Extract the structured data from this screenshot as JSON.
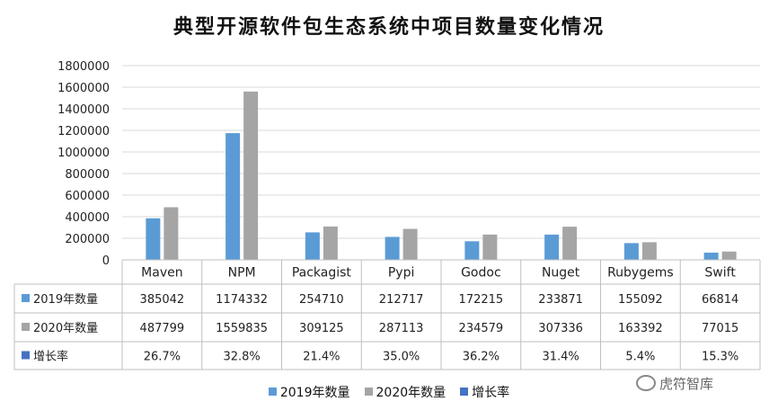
{
  "chart_data": {
    "type": "bar",
    "title": "典型开源软件包生态系统中项目数量变化情况",
    "categories": [
      "Maven",
      "NPM",
      "Packagist",
      "Pypi",
      "Godoc",
      "Nuget",
      "Rubygems",
      "Swift"
    ],
    "series": [
      {
        "name": "2019年数量",
        "color": "#5b9bd5",
        "values": [
          385042,
          1174332,
          254710,
          212717,
          172215,
          233871,
          155092,
          66814
        ]
      },
      {
        "name": "2020年数量",
        "color": "#a5a5a5",
        "values": [
          487799,
          1559835,
          309125,
          287113,
          234579,
          307336,
          163392,
          77015
        ]
      },
      {
        "name": "增长率",
        "color": "#4472c4",
        "labels": [
          "26.7%",
          "32.8%",
          "21.4%",
          "35.0%",
          "36.2%",
          "31.4%",
          "5.4%",
          "15.3%"
        ]
      }
    ],
    "ylim": [
      0,
      1800000
    ],
    "yticks": [
      "0",
      "200000",
      "400000",
      "600000",
      "800000",
      "1000000",
      "1200000",
      "1400000",
      "1600000",
      "1800000"
    ],
    "grid": true,
    "legend": "bottom"
  },
  "watermark": "虎符智库"
}
